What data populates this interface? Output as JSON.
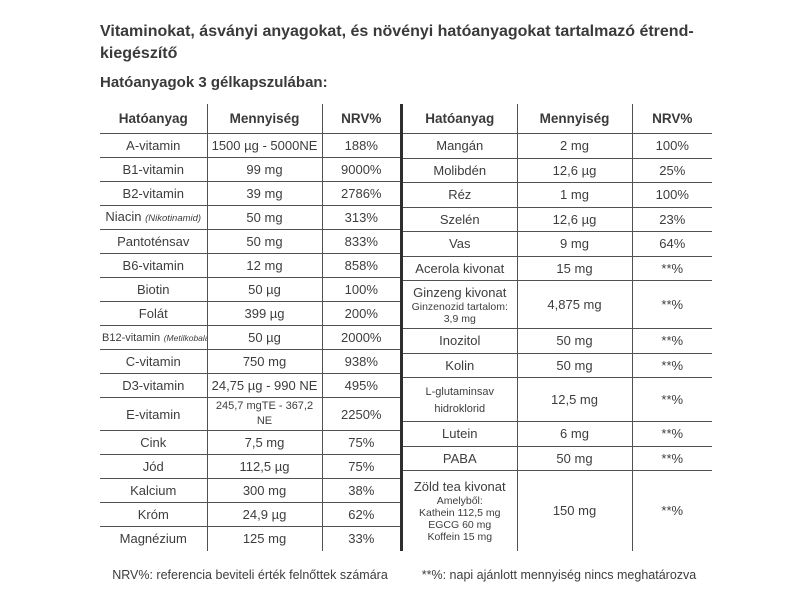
{
  "header": {
    "title": "Vitaminokat, ásványi anyagokat, és növényi hatóanyagokat tartalmazó étrend-kiegészítő",
    "subtitle": "Hatóanyagok 3 gélkapszulában:"
  },
  "left_table": {
    "columns": [
      "Hatóanyag",
      "Mennyiség",
      "NRV%"
    ],
    "rows": [
      {
        "name": "A-vitamin",
        "qty": "1500 µg - 5000NE",
        "nrv": "188%"
      },
      {
        "name": "B1-vitamin",
        "qty": "99 mg",
        "nrv": "9000%"
      },
      {
        "name": "B2-vitamin",
        "qty": "39 mg",
        "nrv": "2786%"
      },
      {
        "name": "Niacin",
        "note": "(Nikotinamid)",
        "qty": "50 mg",
        "nrv": "313%"
      },
      {
        "name": "Pantoténsav",
        "qty": "50 mg",
        "nrv": "833%"
      },
      {
        "name": "B6-vitamin",
        "qty": "12 mg",
        "nrv": "858%"
      },
      {
        "name": "Biotin",
        "qty": "50 µg",
        "nrv": "100%"
      },
      {
        "name": "Folát",
        "qty": "399 µg",
        "nrv": "200%"
      },
      {
        "name": "B12-vitamin",
        "note": "(Metilkobalamin)",
        "qty": "50 µg",
        "nrv": "2000%"
      },
      {
        "name": "C-vitamin",
        "qty": "750 mg",
        "nrv": "938%"
      },
      {
        "name": "D3-vitamin",
        "qty": "24,75 µg - 990 NE",
        "nrv": "495%"
      },
      {
        "name": "E-vitamin",
        "qty": "245,7 mgTE - 367,2 NE",
        "nrv": "2250%"
      },
      {
        "name": "Cink",
        "qty": "7,5 mg",
        "nrv": "75%"
      },
      {
        "name": "Jód",
        "qty": "112,5 µg",
        "nrv": "75%"
      },
      {
        "name": "Kalcium",
        "qty": "300 mg",
        "nrv": "38%"
      },
      {
        "name": "Króm",
        "qty": "24,9 µg",
        "nrv": "62%"
      },
      {
        "name": "Magnézium",
        "qty": "125 mg",
        "nrv": "33%"
      }
    ]
  },
  "right_table": {
    "columns": [
      "Hatóanyag",
      "Mennyiség",
      "NRV%"
    ],
    "rows": [
      {
        "name": "Mangán",
        "qty": "2 mg",
        "nrv": "100%"
      },
      {
        "name": "Molibdén",
        "qty": "12,6 µg",
        "nrv": "25%"
      },
      {
        "name": "Réz",
        "qty": "1 mg",
        "nrv": "100%"
      },
      {
        "name": "Szelén",
        "qty": "12,6 µg",
        "nrv": "23%"
      },
      {
        "name": "Vas",
        "qty": "9 mg",
        "nrv": "64%"
      },
      {
        "name": "Acerola kivonat",
        "qty": "15 mg",
        "nrv": "**%"
      },
      {
        "name": "Ginzeng kivonat",
        "sub": [
          "Ginzenozid tartalom:",
          "3,9 mg"
        ],
        "qty": "4,875 mg",
        "nrv": "**%"
      },
      {
        "name": "Inozitol",
        "qty": "50 mg",
        "nrv": "**%"
      },
      {
        "name": "Kolin",
        "qty": "50 mg",
        "nrv": "**%"
      },
      {
        "name": "L-glutaminsav hidroklorid",
        "qty": "12,5 mg",
        "nrv": "**%"
      },
      {
        "name": "Lutein",
        "qty": "6 mg",
        "nrv": "**%"
      },
      {
        "name": "PABA",
        "qty": "50 mg",
        "nrv": "**%"
      },
      {
        "name": "Zöld tea kivonat",
        "sub": [
          "Amelyből:",
          "Kathein 112,5 mg",
          "EGCG 60 mg",
          "Koffein 15 mg"
        ],
        "qty": "150 mg",
        "nrv": "**%"
      }
    ]
  },
  "footnotes": {
    "left": "NRV%: referencia beviteli érték felnőttek számára",
    "right": "**%: napi ajánlott mennyiség nincs meghatározva"
  }
}
